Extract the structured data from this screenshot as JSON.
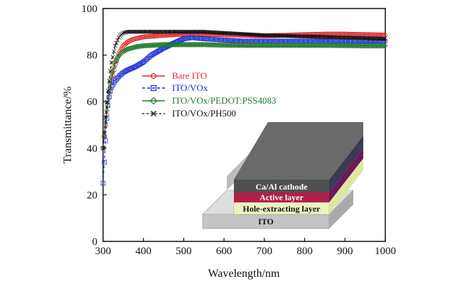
{
  "chart_data": {
    "type": "line",
    "title": "",
    "xlabel": "Wavelength/nm",
    "ylabel": "Transmittance/%",
    "xlim": [
      300,
      1000
    ],
    "ylim": [
      0,
      100
    ],
    "xticks": [
      "300",
      "400",
      "500",
      "600",
      "700",
      "800",
      "900",
      "1000"
    ],
    "yticks": [
      "0",
      "20",
      "40",
      "60",
      "80",
      "100"
    ],
    "legend_position": "center",
    "series": [
      {
        "name": "Bare ITO",
        "color": "#e0282b",
        "marker": "circle",
        "line": "solid",
        "x": [
          300,
          310,
          320,
          330,
          340,
          350,
          360,
          370,
          380,
          400,
          450,
          500,
          550,
          600,
          650,
          700,
          750,
          800,
          850,
          900,
          950,
          1000
        ],
        "y": [
          40,
          56,
          68,
          76,
          81,
          84,
          85.5,
          86.5,
          87,
          87.8,
          88.5,
          89,
          89,
          88.8,
          88.5,
          88.3,
          88.5,
          88.8,
          89,
          89,
          88.8,
          88.6
        ]
      },
      {
        "name": "ITO/VOx",
        "color": "#1a2ad6",
        "marker": "square",
        "line": "dashed",
        "x": [
          300,
          305,
          310,
          315,
          320,
          330,
          340,
          350,
          360,
          380,
          400,
          420,
          450,
          480,
          500,
          520,
          550,
          600,
          650,
          700,
          750,
          800,
          850,
          900,
          950,
          1000
        ],
        "y": [
          25,
          40,
          56,
          62,
          66,
          69,
          71,
          72.5,
          73.5,
          75,
          77,
          80,
          83,
          85.5,
          87,
          87.5,
          87,
          86.5,
          86,
          86,
          86,
          86,
          86,
          86,
          86,
          86
        ]
      },
      {
        "name": "ITO/VOx/PEDOT:PSS4083",
        "color": "#1f7a2c",
        "marker": "diamond",
        "line": "solid",
        "x": [
          300,
          310,
          320,
          330,
          340,
          350,
          360,
          370,
          380,
          400,
          450,
          500,
          550,
          600,
          650,
          700,
          750,
          800,
          850,
          900,
          950,
          1000
        ],
        "y": [
          40,
          58,
          70,
          77,
          80,
          81.5,
          82.5,
          83,
          83.5,
          84,
          84.5,
          84.5,
          84.5,
          84.3,
          84.2,
          84.2,
          84.2,
          84.2,
          84.2,
          84.1,
          84,
          84
        ]
      },
      {
        "name": "ITO/VOx/PH500",
        "color": "#111111",
        "marker": "x",
        "line": "dashed",
        "x": [
          300,
          310,
          320,
          330,
          340,
          350,
          360,
          370,
          380,
          400,
          450,
          500,
          550,
          600,
          650,
          700,
          750,
          800,
          850,
          900,
          950,
          1000
        ],
        "y": [
          40,
          62,
          76,
          84,
          88,
          89.5,
          90,
          90,
          90,
          90,
          90,
          90,
          90,
          89.5,
          89,
          88.5,
          88.3,
          88,
          87.8,
          87.5,
          87.3,
          87
        ]
      }
    ],
    "inset": {
      "layers": [
        {
          "label": "Ca/Al  cathode",
          "color": "#5a5a5a",
          "text_color": "#ffffff"
        },
        {
          "label": "Active layer",
          "color": "#b0204a",
          "text_color": "#ffffff"
        },
        {
          "label": "Hole-extracting layer",
          "color": "#eef2c2",
          "text_color": "#111111"
        },
        {
          "label": "ITO",
          "color": "#c4c4c4",
          "text_color": "#111111"
        }
      ]
    }
  }
}
